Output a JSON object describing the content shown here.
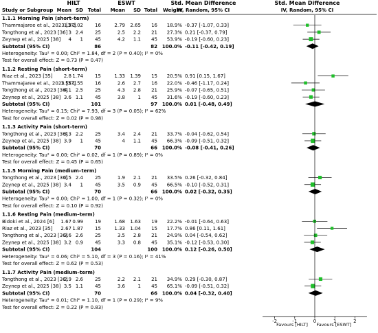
{
  "header": {
    "study_label": "Study or Subgroup",
    "hilt_label": "HILT",
    "eswt_label": "ESWT",
    "mean_label": "Mean",
    "sd_label": "SD",
    "total_label": "Total",
    "weight_label": "Weight",
    "smd_label": "Std. Mean Difference",
    "method_label": "IV, Random, 95% CI"
  },
  "axis": {
    "ticks": [
      "-2",
      "-1",
      "0",
      "1",
      "2"
    ],
    "tick_values": [
      -2,
      -1,
      0,
      1,
      2
    ],
    "left_label": "Favours [HILT]",
    "right_label": "Favours [ESWT]"
  },
  "chart_data": {
    "type": "forest",
    "xlim": [
      -2.6,
      2.6
    ],
    "colors": {
      "study_marker": "#1fbf2a",
      "diamond": "#000000",
      "ci_line": "#000000"
    },
    "groups": [
      {
        "title": "1.1.1 Morning Pain (short–term)",
        "studies": [
          {
            "name": "Thammajaree et al., 2023 [37]",
            "hm": "1.9",
            "hsd": "2.02",
            "ht": "16",
            "em": "2.79",
            "esd": "2.65",
            "et": "16",
            "weight": "18.9%",
            "ci_text": "-0.37 [-1.07, 0.33]",
            "est": -0.37,
            "lo": -1.07,
            "hi": 0.33,
            "w": 18.9
          },
          {
            "name": "Tongthong et al., 2023 [36]",
            "hm": "3",
            "hsd": "2.4",
            "ht": "25",
            "em": "2.5",
            "esd": "2.2",
            "et": "21",
            "weight": "27.3%",
            "ci_text": "0.21 [-0.37, 0.79]",
            "est": 0.21,
            "lo": -0.37,
            "hi": 0.79,
            "w": 27.3
          },
          {
            "name": "Zeynep et al., 2025 [38]",
            "hm": "4",
            "hsd": "1",
            "ht": "45",
            "em": "4.2",
            "esd": "1.1",
            "et": "45",
            "weight": "53.9%",
            "ci_text": "-0.19 [-0.60, 0.23]",
            "est": -0.19,
            "lo": -0.6,
            "hi": 0.23,
            "w": 53.9
          }
        ],
        "subtotal": {
          "label": "Subtotal (95% CI)",
          "ht": "86",
          "et": "82",
          "weight": "100.0%",
          "ci_text": "-0.11 [-0.42, 0.19]",
          "est": -0.11,
          "lo": -0.42,
          "hi": 0.19
        },
        "heterogeneity": "Heterogeneity: Tau² = 0.00; Chi² = 1.84, df = 2 (P = 0.40); I² = 0%",
        "overall": "Test for overall effect: Z = 0.73 (P = 0.47)"
      },
      {
        "title": "1.1.2 Resting Pain (short–term)",
        "studies": [
          {
            "name": "Riaz et al., 2023 [35]",
            "hm": "2.8",
            "hsd": "1.74",
            "ht": "15",
            "em": "1.33",
            "esd": "1.39",
            "et": "15",
            "weight": "20.5%",
            "ci_text": "0.91 [0.15, 1.67]",
            "est": 0.91,
            "lo": 0.15,
            "hi": 1.67,
            "w": 20.5
          },
          {
            "name": "Thammajaree et al., 2023 [37]",
            "hm": "1.55",
            "hsd": "1.55",
            "ht": "16",
            "em": "2.6",
            "esd": "2.7",
            "et": "16",
            "weight": "22.0%",
            "ci_text": "-0.46 [-1.17, 0.24]",
            "est": -0.46,
            "lo": -1.17,
            "hi": 0.24,
            "w": 22.0
          },
          {
            "name": "Tongthong et al., 2023 [36]",
            "hm": "4.1",
            "hsd": "2.5",
            "ht": "25",
            "em": "4.3",
            "esd": "2.8",
            "et": "21",
            "weight": "25.9%",
            "ci_text": "-0.07 [-0.65, 0.51]",
            "est": -0.07,
            "lo": -0.65,
            "hi": 0.51,
            "w": 25.9
          },
          {
            "name": "Zeynep et al., 2025 [38]",
            "hm": "3.6",
            "hsd": "1.1",
            "ht": "45",
            "em": "3.8",
            "esd": "1",
            "et": "45",
            "weight": "31.6%",
            "ci_text": "-0.19 [-0.60, 0.23]",
            "est": -0.19,
            "lo": -0.6,
            "hi": 0.23,
            "w": 31.6
          }
        ],
        "subtotal": {
          "label": "Subtotal (95% CI)",
          "ht": "101",
          "et": "97",
          "weight": "100.0%",
          "ci_text": "0.01 [-0.48, 0.49]",
          "est": 0.01,
          "lo": -0.48,
          "hi": 0.49
        },
        "heterogeneity": "Heterogeneity: Tau² = 0.15; Chi² = 7.93, df = 3 (P = 0.05); I² = 62%",
        "overall": "Test for overall effect: Z = 0.02 (P = 0.98)"
      },
      {
        "title": "1.1.3 Activity Pain (short–term)",
        "studies": [
          {
            "name": "Tongthong et al., 2023 [36]",
            "hm": "3.3",
            "hsd": "2.2",
            "ht": "25",
            "em": "3.4",
            "esd": "2.4",
            "et": "21",
            "weight": "33.7%",
            "ci_text": "-0.04 [-0.62, 0.54]",
            "est": -0.04,
            "lo": -0.62,
            "hi": 0.54,
            "w": 33.7
          },
          {
            "name": "Zeynep et al., 2025 [38]",
            "hm": "3.9",
            "hsd": "1",
            "ht": "45",
            "em": "4",
            "esd": "1.1",
            "et": "45",
            "weight": "66.3%",
            "ci_text": "-0.09 [-0.51, 0.32]",
            "est": -0.09,
            "lo": -0.51,
            "hi": 0.32,
            "w": 66.3
          }
        ],
        "subtotal": {
          "label": "Subtotal (95% CI)",
          "ht": "70",
          "et": "66",
          "weight": "100.0%",
          "ci_text": "-0.08 [-0.41, 0.26]",
          "est": -0.08,
          "lo": -0.41,
          "hi": 0.26
        },
        "heterogeneity": "Heterogeneity: Tau² = 0.00; Chi² = 0.02, df = 1 (P = 0.89); I² = 0%",
        "overall": "Test for overall effect: Z = 0.45 (P = 0.65)"
      },
      {
        "title": "1.1.5 Morning Pain (medium–term)",
        "studies": [
          {
            "name": "Tongthong et al., 2023 [36]",
            "hm": "2.5",
            "hsd": "2.4",
            "ht": "25",
            "em": "1.9",
            "esd": "2.1",
            "et": "21",
            "weight": "33.5%",
            "ci_text": "0.26 [-0.32, 0.84]",
            "est": 0.26,
            "lo": -0.32,
            "hi": 0.84,
            "w": 33.5
          },
          {
            "name": "Zeynep et al., 2025 [38]",
            "hm": "3.4",
            "hsd": "1",
            "ht": "45",
            "em": "3.5",
            "esd": "0.9",
            "et": "45",
            "weight": "66.5%",
            "ci_text": "-0.10 [-0.52, 0.31]",
            "est": -0.1,
            "lo": -0.52,
            "hi": 0.31,
            "w": 66.5
          }
        ],
        "subtotal": {
          "label": "Subtotal (95% CI)",
          "ht": "70",
          "et": "66",
          "weight": "100.0%",
          "ci_text": "0.02 [-0.32, 0.35]",
          "est": 0.02,
          "lo": -0.32,
          "hi": 0.35
        },
        "heterogeneity": "Heterogeneity: Tau² = 0.00; Chi² = 1.00, df = 1 (P = 0.32); I² = 0%",
        "overall": "Test for overall effect: Z = 0.10 (P = 0.92)"
      },
      {
        "title": "1.1.6 Resting Pain (medium–term)",
        "studies": [
          {
            "name": "Bidoki et al., 2024 [6]",
            "hm": "1.67",
            "hsd": "0.99",
            "ht": "19",
            "em": "1.68",
            "esd": "1.63",
            "et": "19",
            "weight": "22.2%",
            "ci_text": "-0.01 [-0.64, 0.63]",
            "est": -0.01,
            "lo": -0.64,
            "hi": 0.63,
            "w": 22.2
          },
          {
            "name": "Riaz et al., 2023 [35]",
            "hm": "2.67",
            "hsd": "1.87",
            "ht": "15",
            "em": "1.33",
            "esd": "1.04",
            "et": "15",
            "weight": "17.7%",
            "ci_text": "0.86 [0.11, 1.61]",
            "est": 0.86,
            "lo": 0.11,
            "hi": 1.61,
            "w": 17.7
          },
          {
            "name": "Tongthong et al., 2023 [36]",
            "hm": "3.6",
            "hsd": "2.6",
            "ht": "25",
            "em": "3.5",
            "esd": "2.8",
            "et": "21",
            "weight": "24.9%",
            "ci_text": "0.04 [-0.54, 0.62]",
            "est": 0.04,
            "lo": -0.54,
            "hi": 0.62,
            "w": 24.9
          },
          {
            "name": "Zeynep et al., 2025 [38]",
            "hm": "3.2",
            "hsd": "0.9",
            "ht": "45",
            "em": "3.3",
            "esd": "0.8",
            "et": "45",
            "weight": "35.1%",
            "ci_text": "-0.12 [-0.53, 0.30]",
            "est": -0.12,
            "lo": -0.53,
            "hi": 0.3,
            "w": 35.1
          }
        ],
        "subtotal": {
          "label": "Subtotal (95% CI)",
          "ht": "104",
          "et": "100",
          "weight": "100.0%",
          "ci_text": "0.12 [-0.26, 0.50]",
          "est": 0.12,
          "lo": -0.26,
          "hi": 0.5
        },
        "heterogeneity": "Heterogeneity: Tau² = 0.06; Chi² = 5.10, df = 3 (P = 0.16); I² = 41%",
        "overall": "Test for overall effect: Z = 0.62 (P = 0.53)"
      },
      {
        "title": "1.1.7 Activity Pain (medium–term)",
        "studies": [
          {
            "name": "Tongthong et al., 2023 [36]",
            "hm": "2.9",
            "hsd": "2.6",
            "ht": "25",
            "em": "2.2",
            "esd": "2.1",
            "et": "21",
            "weight": "34.9%",
            "ci_text": "0.29 [-0.30, 0.87]",
            "est": 0.29,
            "lo": -0.3,
            "hi": 0.87,
            "w": 34.9
          },
          {
            "name": "Zeynep et al., 2025 [38]",
            "hm": "3.5",
            "hsd": "1.1",
            "ht": "45",
            "em": "3.6",
            "esd": "1",
            "et": "45",
            "weight": "65.1%",
            "ci_text": "-0.09 [-0.51, 0.32]",
            "est": -0.09,
            "lo": -0.51,
            "hi": 0.32,
            "w": 65.1
          }
        ],
        "subtotal": {
          "label": "Subtotal (95% CI)",
          "ht": "70",
          "et": "66",
          "weight": "100.0%",
          "ci_text": "0.04 [-0.32, 0.40]",
          "est": 0.04,
          "lo": -0.32,
          "hi": 0.4
        },
        "heterogeneity": "Heterogeneity: Tau² = 0.01; Chi² = 1.10, df = 1 (P = 0.29); I² = 9%",
        "overall": "Test for overall effect: Z = 0.22 (P = 0.83)"
      }
    ]
  }
}
